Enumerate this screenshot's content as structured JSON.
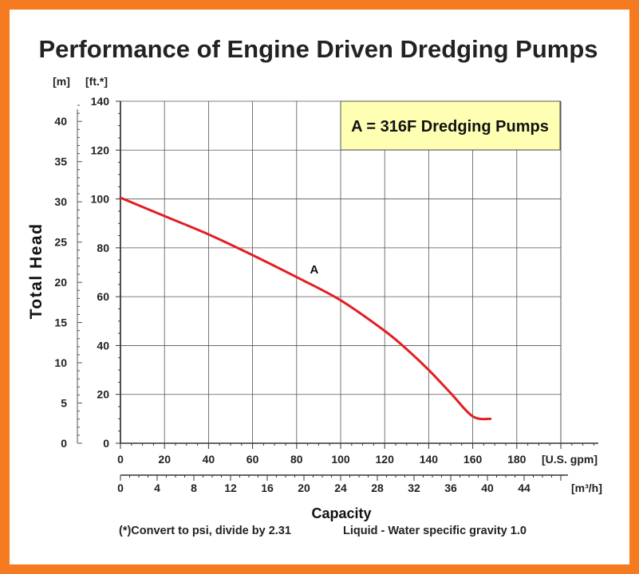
{
  "chart_data": {
    "type": "line",
    "title": "Performance of Engine Driven Dredging Pumps",
    "ylabel": "Total Head",
    "xlabel": "Capacity",
    "x_unit": "[U.S. gpm]",
    "x2_unit": "[m³/h]",
    "y_unit": "[ft.*]",
    "y2_unit": "[m]",
    "xlim": [
      0,
      200
    ],
    "ylim": [
      0,
      140
    ],
    "x2lim": [
      0,
      48
    ],
    "y2lim": [
      0,
      42.5
    ],
    "x_ticks": [
      "0",
      "20",
      "40",
      "60",
      "80",
      "100",
      "120",
      "140",
      "160",
      "180"
    ],
    "x2_ticks": [
      "0",
      "4",
      "8",
      "12",
      "16",
      "20",
      "24",
      "28",
      "32",
      "36",
      "40",
      "44"
    ],
    "y_ticks": [
      "0",
      "20",
      "40",
      "60",
      "80",
      "100",
      "120",
      "140"
    ],
    "y2_ticks": [
      "0",
      "5",
      "10",
      "15",
      "20",
      "25",
      "30",
      "35",
      "40"
    ],
    "grid": true,
    "legend_box": "A = 316F Dredging Pumps",
    "legend_placement": "top-right",
    "series": [
      {
        "name": "A",
        "color": "#e31e24",
        "x": [
          0,
          20,
          40,
          60,
          80,
          100,
          120,
          130,
          140,
          150,
          160,
          168
        ],
        "y": [
          100.5,
          93,
          85.5,
          77,
          68,
          58.5,
          46,
          38.5,
          30,
          20.5,
          11,
          10
        ]
      }
    ]
  },
  "footnote_left": "(*)Convert to psi, divide by 2.31",
  "footnote_right": "Liquid - Water specific gravity 1.0",
  "colors": {
    "frame": "#f47b20",
    "legend_fill": "#ffffb4",
    "series": "#e31e24",
    "grid": "#555555"
  }
}
